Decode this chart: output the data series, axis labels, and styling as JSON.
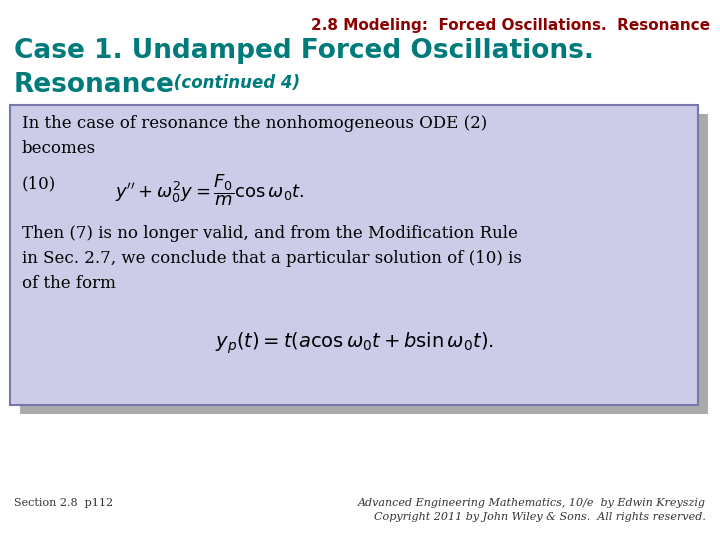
{
  "bg_color": "#ffffff",
  "header_text": "2.8 Modeling:  Forced Oscillations.  Resonance",
  "header_color": "#8B0000",
  "header_fontsize": 11,
  "title_line1": "Case 1. Undamped Forced Oscillations.",
  "title_line2": "Resonance",
  "title_continued": " (continued 4)",
  "title_color": "#007B7B",
  "title_fontsize": 19,
  "continued_fontsize": 12,
  "box_bg": "#cccce8",
  "box_edge": "#7777aa",
  "body_text1": "In the case of resonance the nonhomogeneous ODE (2)\nbecomes",
  "body_label": "(10)",
  "body_eq1": "$y'' + \\omega_0^{2}y = \\dfrac{F_0}{m}\\cos\\omega_0 t.$",
  "body_text2": "Then (7) is no longer valid, and from the Modification Rule\nin Sec. 2.7, we conclude that a particular solution of (10) is\nof the form",
  "body_eq2": "$y_p(t) = t(a \\cos \\omega_0 t + b \\sin \\omega_0 t).$",
  "body_fontsize": 12,
  "eq_fontsize": 13,
  "footer_left": "Section 2.8  p112",
  "footer_right": "Advanced Engineering Mathematics, 10/e  by Edwin Kreyszig\nCopyright 2011 by John Wiley & Sons.  All rights reserved.",
  "footer_fontsize": 8,
  "footer_color": "#333333"
}
